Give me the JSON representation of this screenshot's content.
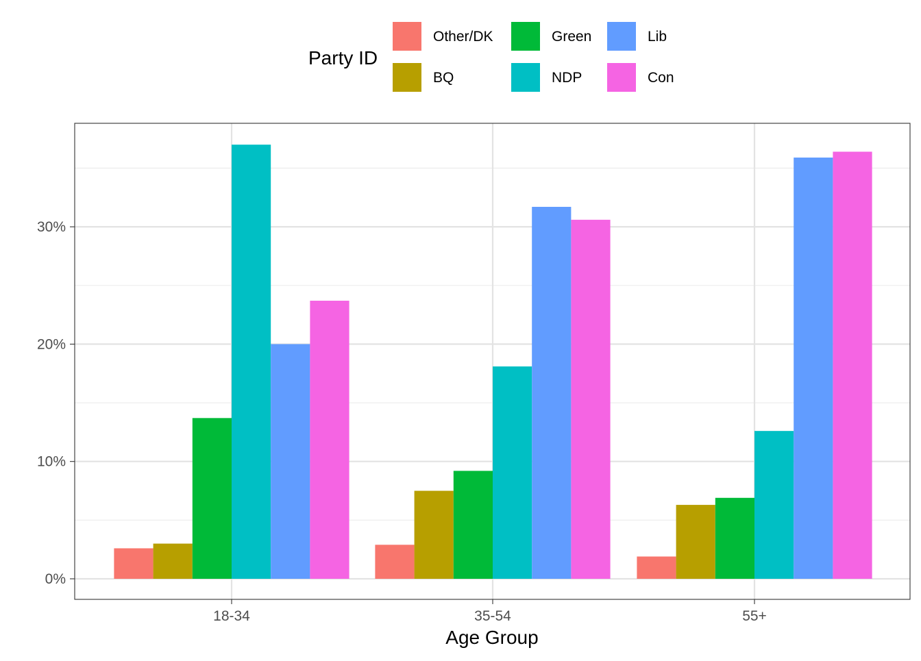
{
  "chart_data": {
    "type": "bar",
    "title": "",
    "xlabel": "Age Group",
    "ylabel": "",
    "categories": [
      "18-34",
      "35-54",
      "55+"
    ],
    "ylim": [
      0,
      38.8
    ],
    "yticks": [
      0,
      10,
      20,
      30
    ],
    "ytick_labels": [
      "0%",
      "10%",
      "20%",
      "30%"
    ],
    "grid": true,
    "legend": {
      "title": "Party ID",
      "placement": "top",
      "columns": 3
    },
    "series": [
      {
        "name": "Other/DK",
        "color": "#F8766D",
        "values": [
          2.6,
          2.9,
          1.9
        ]
      },
      {
        "name": "BQ",
        "color": "#B79F00",
        "values": [
          3.0,
          7.5,
          6.3
        ]
      },
      {
        "name": "Green",
        "color": "#00BA38",
        "values": [
          13.7,
          9.2,
          6.9
        ]
      },
      {
        "name": "NDP",
        "color": "#00BFC4",
        "values": [
          37.0,
          18.1,
          12.6
        ]
      },
      {
        "name": "Lib",
        "color": "#619CFF",
        "values": [
          20.0,
          31.7,
          35.9
        ]
      },
      {
        "name": "Con",
        "color": "#F564E3",
        "values": [
          23.7,
          30.6,
          36.4
        ]
      }
    ]
  }
}
